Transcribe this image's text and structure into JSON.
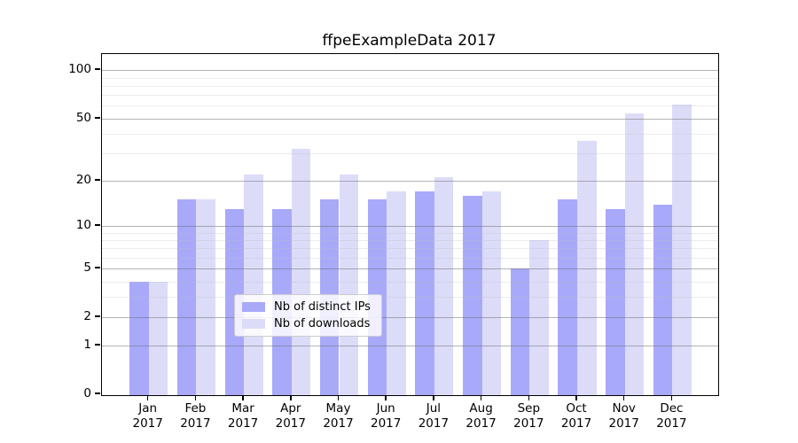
{
  "chart_data": {
    "type": "bar",
    "title": "ffpeExampleData 2017",
    "categories": [
      "Jan",
      "Feb",
      "Mar",
      "Apr",
      "May",
      "Jun",
      "Jul",
      "Aug",
      "Sep",
      "Oct",
      "Nov",
      "Dec"
    ],
    "category_year": "2017",
    "series": [
      {
        "name": "Nb of distinct IPs",
        "color": "#a9a9fa",
        "values": [
          4,
          15,
          13,
          13,
          15,
          15,
          17,
          16,
          5,
          15,
          13,
          14
        ]
      },
      {
        "name": "Nb of downloads",
        "color": "#dcdcf9",
        "values": [
          4,
          15,
          22,
          32,
          22,
          17,
          21,
          17,
          8,
          36,
          54,
          61
        ]
      }
    ],
    "yscale": "log1p",
    "ylim": [
      0,
      126
    ],
    "y_major_ticks": [
      0,
      1,
      2,
      5,
      10,
      20,
      50,
      100
    ],
    "y_minor_ticks": [
      3,
      4,
      6,
      7,
      8,
      9,
      30,
      40,
      60,
      70,
      80,
      90
    ],
    "xlabel": "",
    "ylabel": "",
    "grid": true,
    "legend_position": "lower center inside"
  }
}
